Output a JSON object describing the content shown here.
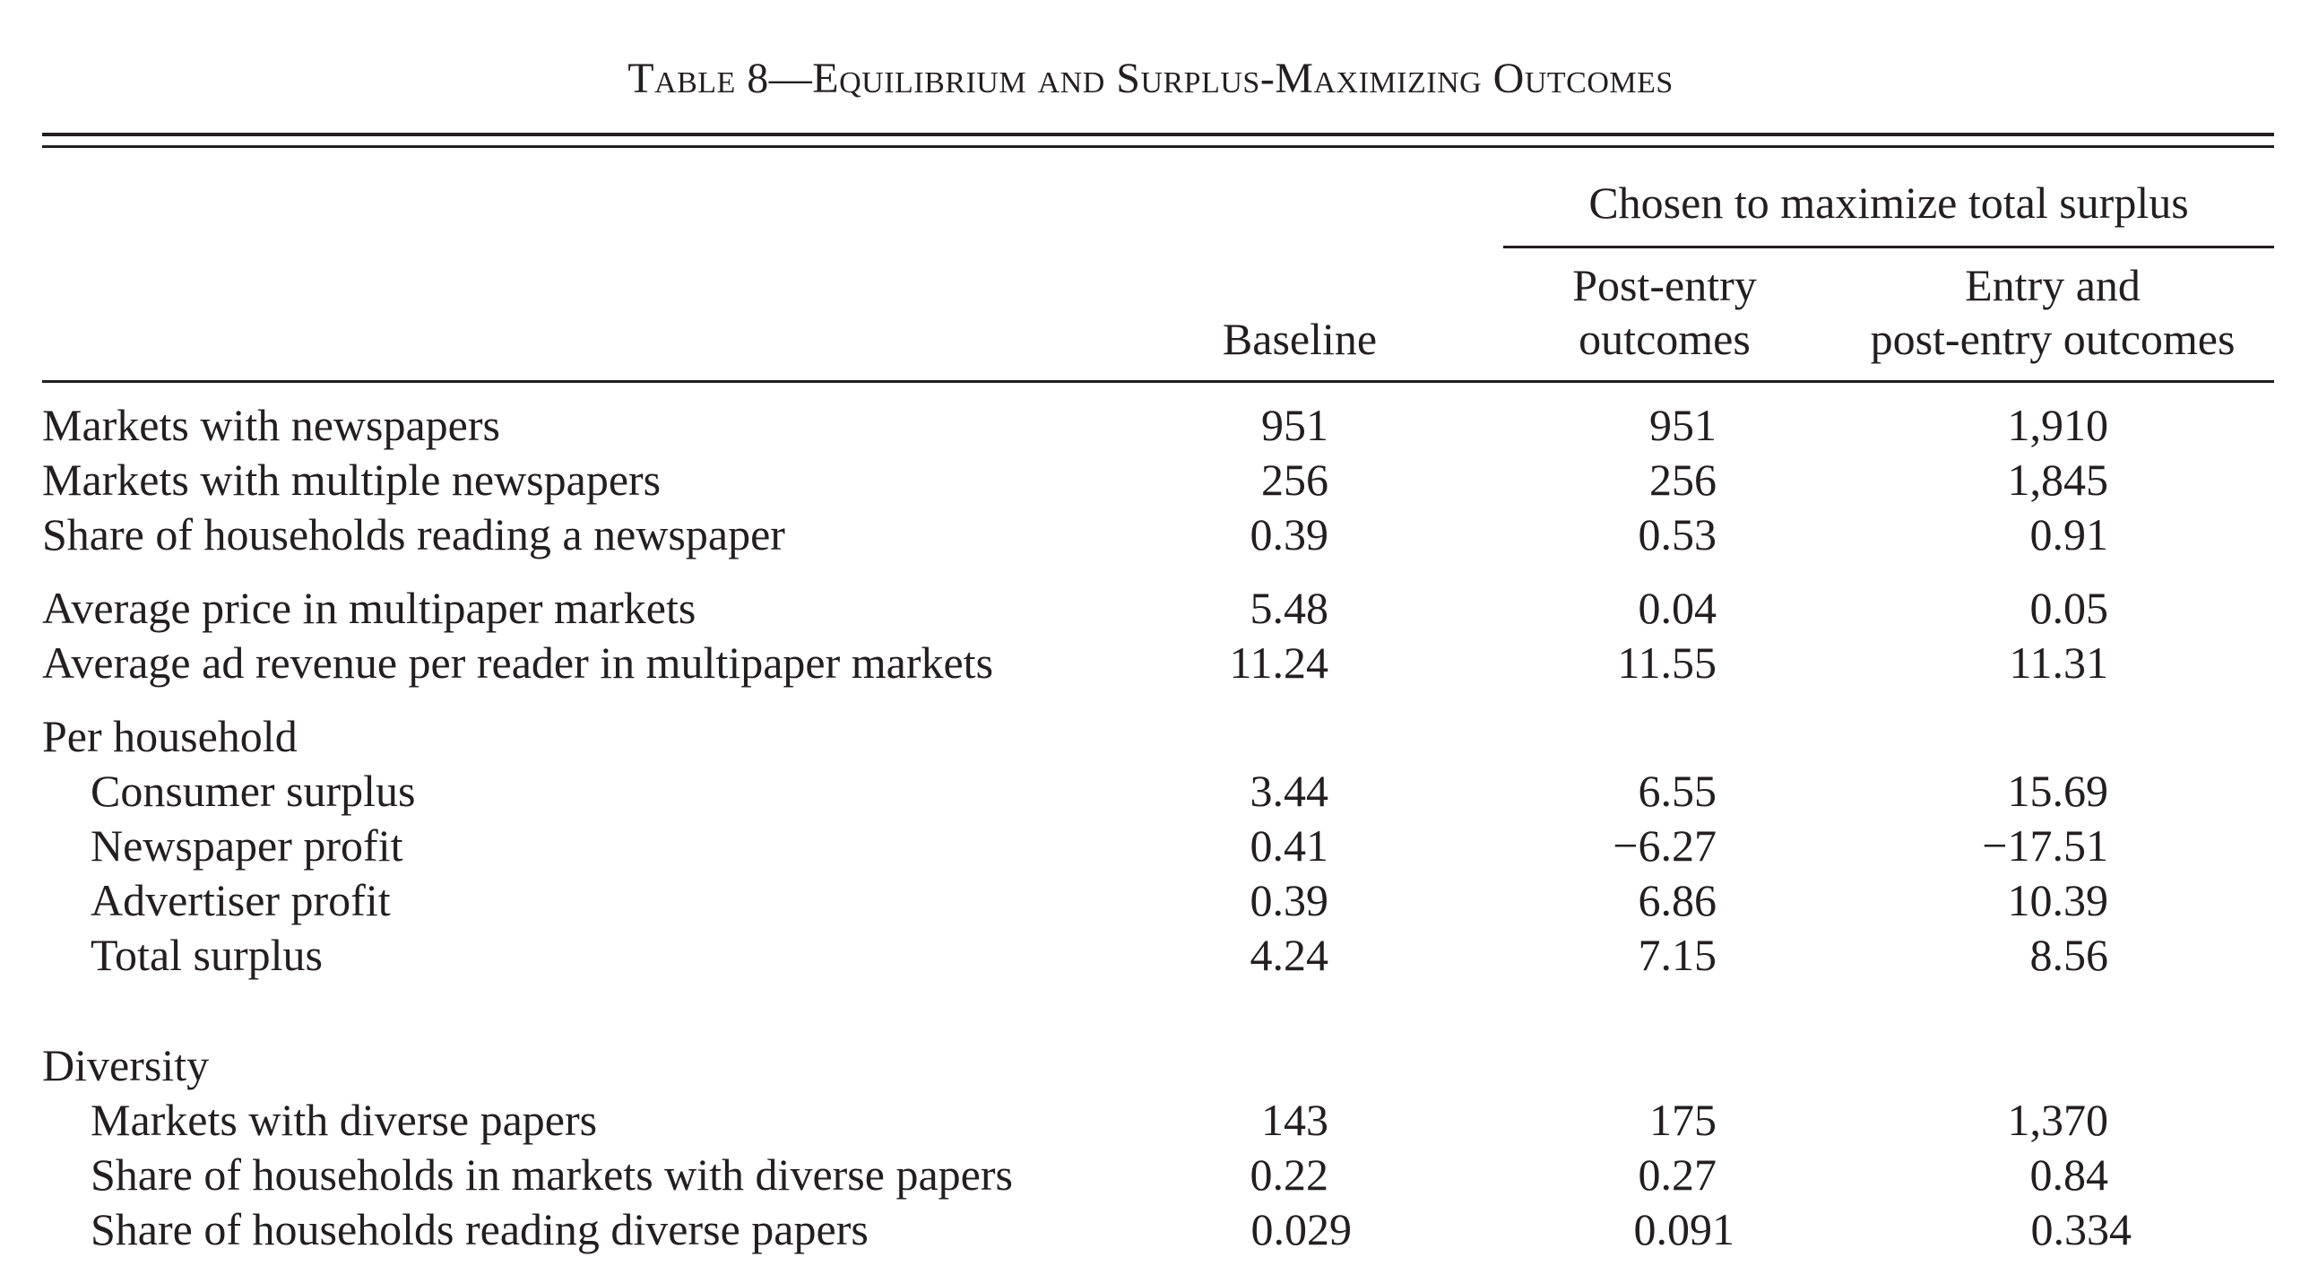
{
  "table": {
    "title": "Table 8—Equilibrium and Surplus-Maximizing Outcomes",
    "spanner": "Chosen to maximize total surplus",
    "columns": {
      "baseline": "Baseline",
      "post_entry_line1": "Post-entry",
      "post_entry_line2": "outcomes",
      "entry_line1": "Entry and",
      "entry_line2": "post-entry outcomes"
    },
    "rows": [
      {
        "label": "Markets with newspapers",
        "baseline": "951",
        "post_entry": "951",
        "entry": "1,910"
      },
      {
        "label": "Markets with multiple newspapers",
        "baseline": "256",
        "post_entry": "256",
        "entry": "1,845"
      },
      {
        "label": "Share of households reading a newspaper",
        "baseline": "0.39",
        "post_entry": "0.53",
        "entry": "0.91"
      },
      {
        "label": "Average price in multipaper markets",
        "baseline": "5.48",
        "post_entry": "0.04",
        "entry": "0.05"
      },
      {
        "label": "Average ad revenue per reader in multipaper markets",
        "baseline": "11.24",
        "post_entry": "11.55",
        "entry": "11.31"
      },
      {
        "label": "Per household"
      },
      {
        "label": "Consumer surplus",
        "baseline": "3.44",
        "post_entry": "6.55",
        "entry": "15.69"
      },
      {
        "label": "Newspaper profit",
        "baseline": "0.41",
        "post_entry": "−6.27",
        "entry": "−17.51"
      },
      {
        "label": "Advertiser profit",
        "baseline": "0.39",
        "post_entry": "6.86",
        "entry": "10.39"
      },
      {
        "label": "Total surplus",
        "baseline": "4.24",
        "post_entry": "7.15",
        "entry": "8.56"
      },
      {
        "label": "Diversity"
      },
      {
        "label": "Markets with diverse papers",
        "baseline": "143",
        "post_entry": "175",
        "entry": "1,370"
      },
      {
        "label": "Share of households in markets with diverse papers",
        "baseline": "0.22",
        "post_entry": "0.27",
        "entry": "0.84"
      },
      {
        "label": "Share of households reading diverse papers",
        "baseline": "0.029",
        "post_entry": "0.091",
        "entry": "0.334"
      }
    ]
  }
}
